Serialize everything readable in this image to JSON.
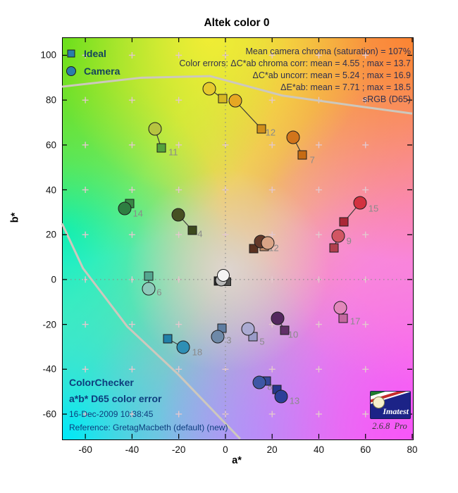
{
  "title": "Altek color 0",
  "legend": {
    "ideal_label": "Ideal",
    "camera_label": "Camera",
    "marker_color": "#2a7dab"
  },
  "stats": {
    "line1": "Mean camera chroma (saturation) = 107%",
    "line2": "Color errors: ΔC*ab chroma corr:  mean = 4.55 ;  max = 13.7",
    "line3": "ΔC*ab uncorr:  mean = 5.24 ;  max = 16.9",
    "line4": "ΔE*ab:  mean = 7.71 ;  max = 18.5",
    "line5": "sRGB (D65)"
  },
  "info_block": {
    "line1": "ColorChecker",
    "line2": "a*b* D65 color error",
    "line3": "16-Dec-2009 10:38:45",
    "line4": "Reference: GretagMacbeth (default) (new)"
  },
  "logo": {
    "brand": "Imatest",
    "version": "2.6.8",
    "edition": "Pro"
  },
  "chart_data": {
    "type": "scatter",
    "title": "Altek color 0",
    "xlabel": "a*",
    "ylabel": "b*",
    "xlim": [
      -70,
      80
    ],
    "ylim": [
      -71,
      108
    ],
    "xticks": [
      -60,
      -40,
      -20,
      0,
      20,
      40,
      60,
      80
    ],
    "yticks": [
      100,
      80,
      60,
      40,
      20,
      0,
      -20,
      -40,
      -60
    ],
    "grid": {
      "plus_a": [
        -60,
        -40,
        -20,
        0,
        20,
        40,
        60
      ],
      "plus_b": [
        -60,
        -40,
        -20,
        0,
        20,
        40,
        60,
        80,
        100
      ],
      "color": "#e4c8ce"
    },
    "zero_lines": {
      "color": "#8e8e8e",
      "style": "dotted"
    },
    "legend_note": "squares = Ideal, circles = Camera, gray numbers = patch id",
    "patches": [
      {
        "id": 1,
        "label": "1",
        "ideal": {
          "a": 12.1,
          "b": 13.8
        },
        "camera": {
          "a": 15.1,
          "b": 16.9
        },
        "ideal_color": "#5a3120",
        "camera_color": "#64392a",
        "label_pos": [
          19.6,
          14.1
        ]
      },
      {
        "id": 2,
        "label": "2",
        "ideal": {
          "a": 16.6,
          "b": 14.7
        },
        "camera": {
          "a": 18.1,
          "b": 16.3
        },
        "ideal_color": "#c18d69",
        "camera_color": "#d9a486",
        "label_pos": [
          21.8,
          14.1
        ]
      },
      {
        "id": 3,
        "label": "3",
        "ideal": {
          "a": -1.5,
          "b": -21.7
        },
        "camera": {
          "a": -3.3,
          "b": -25.5
        },
        "ideal_color": "#5f7da2",
        "camera_color": "#6e89a8",
        "label_pos": [
          1.5,
          -27.0
        ]
      },
      {
        "id": 4,
        "label": "4",
        "ideal": {
          "a": -14.2,
          "b": 22.0
        },
        "camera": {
          "a": -20.2,
          "b": 28.9
        },
        "ideal_color": "#3d4a1e",
        "camera_color": "#475023",
        "label_pos": [
          -10.9,
          20.4
        ]
      },
      {
        "id": 5,
        "label": "5",
        "ideal": {
          "a": 11.8,
          "b": -25.5
        },
        "camera": {
          "a": 9.7,
          "b": -22.0
        },
        "ideal_color": "#9a9bc8",
        "camera_color": "#abaad2",
        "label_pos": [
          15.7,
          -27.7
        ]
      },
      {
        "id": 6,
        "label": "6",
        "ideal": {
          "a": -32.9,
          "b": 1.5
        },
        "camera": {
          "a": -32.9,
          "b": -4.1
        },
        "ideal_color": "#54a690",
        "camera_color": "#8dcaba",
        "label_pos": [
          -28.4,
          -5.7
        ]
      },
      {
        "id": 7,
        "label": "7",
        "ideal": {
          "a": 32.9,
          "b": 55.6
        },
        "camera": {
          "a": 29.0,
          "b": 63.4
        },
        "ideal_color": "#c66b12",
        "camera_color": "#d1751b",
        "label_pos": [
          37.2,
          53.4
        ]
      },
      {
        "id": 8,
        "label": "8",
        "ideal": {
          "a": 17.5,
          "b": -45.3
        },
        "camera": {
          "a": 14.5,
          "b": -45.9
        },
        "ideal_color": "#35489a",
        "camera_color": "#3e57a5",
        "label_pos": [
          19.0,
          -47.8
        ]
      },
      {
        "id": 9,
        "label": "9",
        "ideal": {
          "a": 46.5,
          "b": 14.1
        },
        "camera": {
          "a": 48.3,
          "b": 19.4
        },
        "ideal_color": "#b03f4e",
        "camera_color": "#d15663",
        "label_pos": [
          52.9,
          17.2
        ]
      },
      {
        "id": 10,
        "label": "10",
        "ideal": {
          "a": 25.4,
          "b": -22.6
        },
        "camera": {
          "a": 22.4,
          "b": -17.3
        },
        "ideal_color": "#613067",
        "camera_color": "#54285f",
        "label_pos": [
          29.0,
          -24.5
        ]
      },
      {
        "id": 11,
        "label": "11",
        "ideal": {
          "a": -27.5,
          "b": 58.7
        },
        "camera": {
          "a": -30.2,
          "b": 67.2
        },
        "ideal_color": "#54a23c",
        "camera_color": "#b6c440",
        "label_pos": [
          -22.4,
          56.8
        ]
      },
      {
        "id": 12,
        "label": "12",
        "ideal": {
          "a": 15.4,
          "b": 67.2
        },
        "camera": {
          "a": 4.2,
          "b": 79.7
        },
        "ideal_color": "#d08e1b",
        "camera_color": "#e6a723",
        "label_pos": [
          19.3,
          65.6
        ]
      },
      {
        "id": 13,
        "label": "13",
        "ideal": {
          "a": 22.1,
          "b": -49.0
        },
        "camera": {
          "a": 23.9,
          "b": -52.2
        },
        "ideal_color": "#27368c",
        "camera_color": "#2c3f99",
        "label_pos": [
          29.6,
          -54.1
        ]
      },
      {
        "id": 14,
        "label": "14",
        "ideal": {
          "a": -41.1,
          "b": 33.9
        },
        "camera": {
          "a": -43.2,
          "b": 31.7
        },
        "ideal_color": "#388845",
        "camera_color": "#2e7e41",
        "label_pos": [
          -37.5,
          29.5
        ]
      },
      {
        "id": 15,
        "label": "15",
        "ideal": {
          "a": 50.8,
          "b": 25.7
        },
        "camera": {
          "a": 57.7,
          "b": 34.2
        },
        "ideal_color": "#ab2836",
        "camera_color": "#d23240",
        "label_pos": [
          63.4,
          31.7
        ]
      },
      {
        "id": 16,
        "label": "",
        "ideal": {
          "a": -1.2,
          "b": 80.7
        },
        "camera": {
          "a": -6.9,
          "b": 85.1
        },
        "ideal_color": "#d6b723",
        "camera_color": "#e6ca2e",
        "label_pos": null
      },
      {
        "id": 17,
        "label": "17",
        "ideal": {
          "a": 50.5,
          "b": -17.3
        },
        "camera": {
          "a": 49.2,
          "b": -12.6
        },
        "ideal_color": "#c4689f",
        "camera_color": "#e287bb",
        "label_pos": [
          55.6,
          -18.6
        ]
      },
      {
        "id": 18,
        "label": "18",
        "ideal": {
          "a": -24.8,
          "b": -26.4
        },
        "camera": {
          "a": -18.1,
          "b": -30.2
        },
        "ideal_color": "#2180a8",
        "camera_color": "#2e8fb5",
        "label_pos": [
          -12.1,
          -32.4
        ]
      }
    ],
    "neutral_cluster": [
      {
        "type": "square",
        "a": -3.0,
        "b": -0.7,
        "size": 13,
        "color": "#262626"
      },
      {
        "type": "square",
        "a": 0.6,
        "b": -1.0,
        "size": 12,
        "color": "#4f4f4f"
      },
      {
        "type": "circle",
        "a": -1.8,
        "b": -0.3,
        "size": 17,
        "color": "#b9b9b9"
      },
      {
        "type": "circle",
        "a": -0.9,
        "b": 1.9,
        "size": 18,
        "color": "#f4f4f4"
      }
    ],
    "gamut_boundary": {
      "label": "sRGB (D65)",
      "color": "#cdc8bd",
      "upper": [
        [
          -70,
          86
        ],
        [
          -36,
          90
        ],
        [
          -6.6,
          90.7
        ],
        [
          24.5,
          82
        ],
        [
          54.7,
          77.6
        ],
        [
          80,
          74
        ]
      ],
      "lower": [
        [
          -70,
          25
        ],
        [
          -61,
          5
        ],
        [
          -42,
          -21
        ],
        [
          -20.5,
          -42
        ],
        [
          6.3,
          -71
        ]
      ]
    }
  }
}
